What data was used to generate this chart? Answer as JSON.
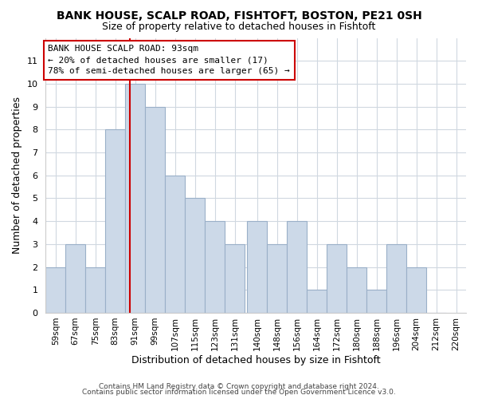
{
  "title": "BANK HOUSE, SCALP ROAD, FISHTOFT, BOSTON, PE21 0SH",
  "subtitle": "Size of property relative to detached houses in Fishtoft",
  "xlabel": "Distribution of detached houses by size in Fishtoft",
  "ylabel": "Number of detached properties",
  "bin_labels": [
    "59sqm",
    "67sqm",
    "75sqm",
    "83sqm",
    "91sqm",
    "99sqm",
    "107sqm",
    "115sqm",
    "123sqm",
    "131sqm",
    "140sqm",
    "148sqm",
    "156sqm",
    "164sqm",
    "172sqm",
    "180sqm",
    "188sqm",
    "196sqm",
    "204sqm",
    "212sqm",
    "220sqm"
  ],
  "bin_edges": [
    59,
    67,
    75,
    83,
    91,
    99,
    107,
    115,
    123,
    131,
    140,
    148,
    156,
    164,
    172,
    180,
    188,
    196,
    204,
    212,
    220
  ],
  "counts": [
    2,
    3,
    2,
    8,
    10,
    9,
    6,
    5,
    4,
    3,
    4,
    3,
    4,
    1,
    3,
    2,
    1,
    3,
    2,
    0
  ],
  "bar_color": "#ccd9e8",
  "bar_edgecolor": "#9ab0c8",
  "ref_line_x": 93,
  "ref_line_color": "#cc0000",
  "annotation_line1": "BANK HOUSE SCALP ROAD: 93sqm",
  "annotation_line2": "← 20% of detached houses are smaller (17)",
  "annotation_line3": "78% of semi-detached houses are larger (65) →",
  "annotation_box_color": "#ffffff",
  "annotation_box_edgecolor": "#cc0000",
  "ylim": [
    0,
    12
  ],
  "yticks": [
    0,
    1,
    2,
    3,
    4,
    5,
    6,
    7,
    8,
    9,
    10,
    11,
    12
  ],
  "footer1": "Contains HM Land Registry data © Crown copyright and database right 2024.",
  "footer2": "Contains public sector information licensed under the Open Government Licence v3.0.",
  "background_color": "#ffffff",
  "grid_color": "#d0d8e0",
  "title_fontsize": 10,
  "subtitle_fontsize": 9
}
